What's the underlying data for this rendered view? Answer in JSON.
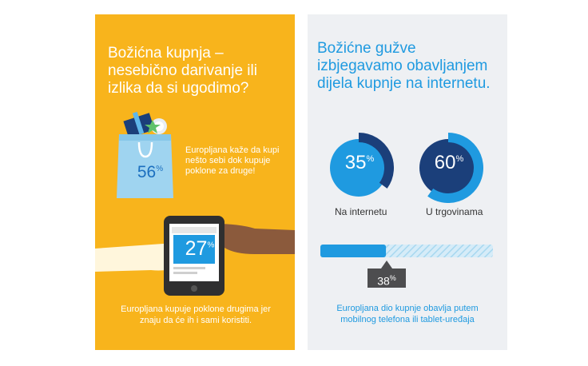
{
  "left": {
    "title": "Božićna kupnja – nesebično darivanje ili izlika da si ugodimo?",
    "stat1": {
      "value": "56",
      "unit": "%",
      "text": "Europljana kaže da kupi nešto sebi dok kupuje poklone za druge!"
    },
    "stat2": {
      "value": "27",
      "unit": "%",
      "text": "Europljana kupuje poklone drugima jer znaju da će ih i sami koristiti."
    }
  },
  "right": {
    "title": "Božićne gužve izbjegavamo obavljanjem dijela kupnje na internetu.",
    "donuts": [
      {
        "value": "35",
        "unit": "%",
        "label": "Na internetu",
        "fraction": 0.35
      },
      {
        "value": "60",
        "unit": "%",
        "label": "U trgovinama",
        "fraction": 0.6
      }
    ],
    "bar": {
      "value": "38",
      "unit": "%",
      "fraction": 0.38,
      "text": "Europljana dio kupnje obavlja putem mobilnog telefona ili tablet-uređaja"
    }
  },
  "colors": {
    "orange": "#f8b41c",
    "blue": "#1f9ae0",
    "navy": "#1b3f7a",
    "light_blue": "#a8d8f0",
    "gray_bg": "#eef0f3"
  },
  "icons": [
    "shopping-bag-icon",
    "gift-box-icon",
    "star-icon",
    "tablet-icon",
    "hand-icon"
  ]
}
